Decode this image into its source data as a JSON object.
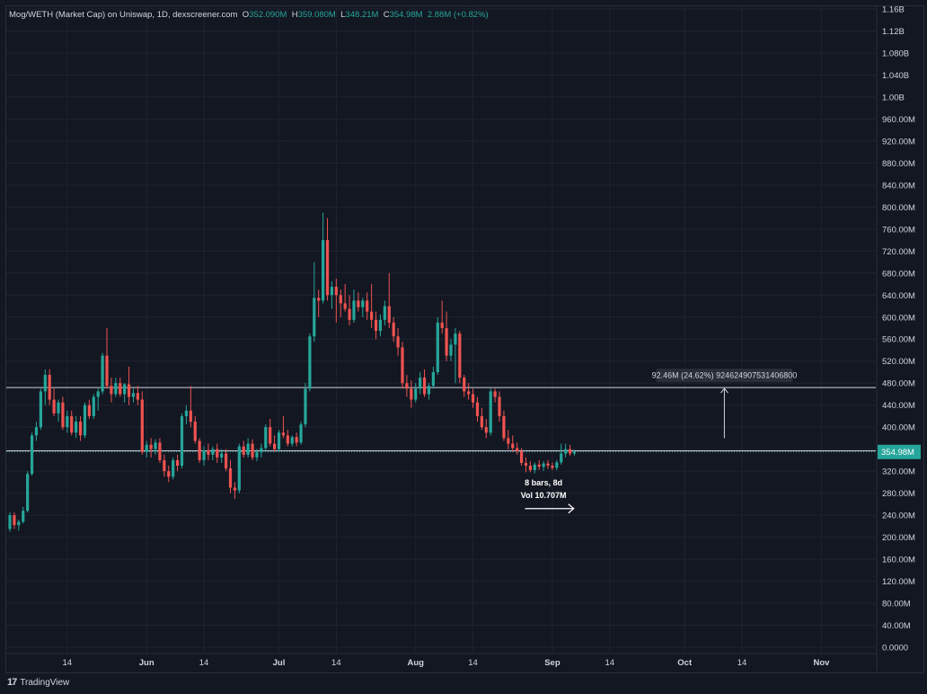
{
  "header": {
    "pair": "Mog/WETH (Market Cap) on Uniswap, 1D, dexscreener.com",
    "o_label": "O",
    "o_value": "352.090M",
    "h_label": "H",
    "h_value": "359.080M",
    "l_label": "L",
    "l_value": "348.21M",
    "c_label": "C",
    "c_value": "354.98M",
    "change": "2.88M (+0.82%)"
  },
  "branding": {
    "logo_mark": "17",
    "name": "TradingView"
  },
  "colors": {
    "up": "#26a69a",
    "down": "#ef5350",
    "background": "#131722",
    "grid": "#1f2331",
    "text": "#d1d4dc"
  },
  "chart_data": {
    "type": "candlestick",
    "y_unit": "market cap (USD)",
    "ylim": [
      0,
      1160000000
    ],
    "y_ticks": [
      "1.16B",
      "1.12B",
      "1.080B",
      "1.040B",
      "1.00B",
      "960.00M",
      "920.00M",
      "880.00M",
      "840.00M",
      "800.00M",
      "760.00M",
      "720.00M",
      "680.00M",
      "640.00M",
      "600.00M",
      "560.00M",
      "520.00M",
      "480.00M",
      "440.00M",
      "400.00M",
      "360.00M",
      "320.00M",
      "280.00M",
      "240.00M",
      "200.00M",
      "160.00M",
      "120.00M",
      "80.00M",
      "40.00M",
      "0.0000"
    ],
    "y_tick_values": [
      1160,
      1120,
      1080,
      1040,
      1000,
      960,
      920,
      880,
      840,
      800,
      760,
      720,
      680,
      640,
      600,
      560,
      520,
      480,
      440,
      400,
      360,
      320,
      280,
      240,
      200,
      160,
      120,
      80,
      40,
      0
    ],
    "x_ticks": [
      {
        "label": "14",
        "day": 14,
        "bold": false
      },
      {
        "label": "Jun",
        "day": 32,
        "bold": true
      },
      {
        "label": "14",
        "day": 45,
        "bold": false
      },
      {
        "label": "Jul",
        "day": 62,
        "bold": true
      },
      {
        "label": "14",
        "day": 75,
        "bold": false
      },
      {
        "label": "Aug",
        "day": 93,
        "bold": true
      },
      {
        "label": "14",
        "day": 106,
        "bold": false
      },
      {
        "label": "Sep",
        "day": 124,
        "bold": true
      },
      {
        "label": "14",
        "day": 137,
        "bold": false
      },
      {
        "label": "Oct",
        "day": 154,
        "bold": true
      },
      {
        "label": "14",
        "day": 167,
        "bold": false
      },
      {
        "label": "Nov",
        "day": 185,
        "bold": true
      }
    ],
    "x_domain": [
      1,
      194
    ],
    "last_price_label": "354.98M",
    "last_price": 354.98,
    "horizontal_lines": [
      472,
      357
    ],
    "measure": {
      "label": "92.46M (24.62%) 924624907531406800",
      "from_price": 380,
      "to_price": 472,
      "day": 163
    },
    "range_note": {
      "line1": "8 bars, 8d",
      "line2": "Vol 10.707M",
      "from_day": 118,
      "to_day": 126,
      "price": 252
    },
    "candles": [
      {
        "d": 1,
        "o": 215,
        "h": 245,
        "l": 210,
        "c": 240
      },
      {
        "d": 2,
        "o": 240,
        "h": 245,
        "l": 215,
        "c": 222
      },
      {
        "d": 3,
        "o": 222,
        "h": 232,
        "l": 212,
        "c": 228
      },
      {
        "d": 4,
        "o": 228,
        "h": 255,
        "l": 225,
        "c": 248
      },
      {
        "d": 5,
        "o": 248,
        "h": 320,
        "l": 245,
        "c": 315
      },
      {
        "d": 6,
        "o": 315,
        "h": 390,
        "l": 312,
        "c": 385
      },
      {
        "d": 7,
        "o": 385,
        "h": 410,
        "l": 375,
        "c": 400
      },
      {
        "d": 8,
        "o": 400,
        "h": 470,
        "l": 395,
        "c": 465
      },
      {
        "d": 9,
        "o": 465,
        "h": 505,
        "l": 440,
        "c": 495
      },
      {
        "d": 10,
        "o": 495,
        "h": 505,
        "l": 440,
        "c": 450
      },
      {
        "d": 11,
        "o": 450,
        "h": 470,
        "l": 420,
        "c": 425
      },
      {
        "d": 12,
        "o": 425,
        "h": 450,
        "l": 410,
        "c": 445
      },
      {
        "d": 13,
        "o": 445,
        "h": 455,
        "l": 395,
        "c": 400
      },
      {
        "d": 14,
        "o": 400,
        "h": 430,
        "l": 390,
        "c": 420
      },
      {
        "d": 15,
        "o": 420,
        "h": 430,
        "l": 385,
        "c": 390
      },
      {
        "d": 16,
        "o": 390,
        "h": 420,
        "l": 380,
        "c": 410
      },
      {
        "d": 17,
        "o": 410,
        "h": 420,
        "l": 375,
        "c": 385
      },
      {
        "d": 18,
        "o": 385,
        "h": 445,
        "l": 380,
        "c": 440
      },
      {
        "d": 19,
        "o": 440,
        "h": 450,
        "l": 415,
        "c": 420
      },
      {
        "d": 20,
        "o": 420,
        "h": 460,
        "l": 415,
        "c": 455
      },
      {
        "d": 21,
        "o": 455,
        "h": 470,
        "l": 430,
        "c": 465
      },
      {
        "d": 22,
        "o": 465,
        "h": 535,
        "l": 460,
        "c": 530
      },
      {
        "d": 23,
        "o": 530,
        "h": 580,
        "l": 470,
        "c": 475
      },
      {
        "d": 24,
        "o": 475,
        "h": 490,
        "l": 445,
        "c": 460
      },
      {
        "d": 25,
        "o": 460,
        "h": 490,
        "l": 455,
        "c": 480
      },
      {
        "d": 26,
        "o": 480,
        "h": 490,
        "l": 455,
        "c": 460
      },
      {
        "d": 27,
        "o": 460,
        "h": 480,
        "l": 445,
        "c": 478
      },
      {
        "d": 28,
        "o": 478,
        "h": 510,
        "l": 440,
        "c": 455
      },
      {
        "d": 29,
        "o": 455,
        "h": 470,
        "l": 445,
        "c": 462
      },
      {
        "d": 30,
        "o": 462,
        "h": 475,
        "l": 440,
        "c": 450
      },
      {
        "d": 31,
        "o": 450,
        "h": 465,
        "l": 350,
        "c": 355
      },
      {
        "d": 32,
        "o": 355,
        "h": 375,
        "l": 345,
        "c": 368
      },
      {
        "d": 33,
        "o": 368,
        "h": 380,
        "l": 345,
        "c": 360
      },
      {
        "d": 34,
        "o": 360,
        "h": 378,
        "l": 350,
        "c": 372
      },
      {
        "d": 35,
        "o": 372,
        "h": 380,
        "l": 335,
        "c": 340
      },
      {
        "d": 36,
        "o": 340,
        "h": 350,
        "l": 310,
        "c": 320
      },
      {
        "d": 37,
        "o": 320,
        "h": 330,
        "l": 300,
        "c": 310
      },
      {
        "d": 38,
        "o": 310,
        "h": 345,
        "l": 305,
        "c": 340
      },
      {
        "d": 39,
        "o": 340,
        "h": 350,
        "l": 320,
        "c": 330
      },
      {
        "d": 40,
        "o": 330,
        "h": 425,
        "l": 325,
        "c": 420
      },
      {
        "d": 41,
        "o": 420,
        "h": 440,
        "l": 405,
        "c": 430
      },
      {
        "d": 42,
        "o": 430,
        "h": 475,
        "l": 400,
        "c": 410
      },
      {
        "d": 43,
        "o": 410,
        "h": 420,
        "l": 370,
        "c": 375
      },
      {
        "d": 44,
        "o": 375,
        "h": 380,
        "l": 335,
        "c": 340
      },
      {
        "d": 45,
        "o": 340,
        "h": 365,
        "l": 330,
        "c": 358
      },
      {
        "d": 46,
        "o": 358,
        "h": 370,
        "l": 340,
        "c": 350
      },
      {
        "d": 47,
        "o": 350,
        "h": 365,
        "l": 340,
        "c": 360
      },
      {
        "d": 48,
        "o": 360,
        "h": 370,
        "l": 335,
        "c": 345
      },
      {
        "d": 49,
        "o": 345,
        "h": 360,
        "l": 335,
        "c": 352
      },
      {
        "d": 50,
        "o": 352,
        "h": 360,
        "l": 320,
        "c": 325
      },
      {
        "d": 51,
        "o": 325,
        "h": 340,
        "l": 280,
        "c": 290
      },
      {
        "d": 52,
        "o": 290,
        "h": 300,
        "l": 270,
        "c": 285
      },
      {
        "d": 53,
        "o": 285,
        "h": 370,
        "l": 280,
        "c": 365
      },
      {
        "d": 54,
        "o": 365,
        "h": 375,
        "l": 345,
        "c": 350
      },
      {
        "d": 55,
        "o": 350,
        "h": 380,
        "l": 345,
        "c": 370
      },
      {
        "d": 56,
        "o": 370,
        "h": 378,
        "l": 340,
        "c": 345
      },
      {
        "d": 57,
        "o": 345,
        "h": 360,
        "l": 338,
        "c": 355
      },
      {
        "d": 58,
        "o": 355,
        "h": 370,
        "l": 345,
        "c": 362
      },
      {
        "d": 59,
        "o": 362,
        "h": 405,
        "l": 355,
        "c": 400
      },
      {
        "d": 60,
        "o": 400,
        "h": 415,
        "l": 365,
        "c": 370
      },
      {
        "d": 61,
        "o": 370,
        "h": 385,
        "l": 355,
        "c": 360
      },
      {
        "d": 62,
        "o": 360,
        "h": 395,
        "l": 355,
        "c": 390
      },
      {
        "d": 63,
        "o": 390,
        "h": 420,
        "l": 380,
        "c": 385
      },
      {
        "d": 64,
        "o": 385,
        "h": 395,
        "l": 365,
        "c": 370
      },
      {
        "d": 65,
        "o": 370,
        "h": 385,
        "l": 365,
        "c": 382
      },
      {
        "d": 66,
        "o": 382,
        "h": 390,
        "l": 365,
        "c": 372
      },
      {
        "d": 67,
        "o": 372,
        "h": 410,
        "l": 368,
        "c": 405
      },
      {
        "d": 68,
        "o": 405,
        "h": 480,
        "l": 400,
        "c": 470
      },
      {
        "d": 69,
        "o": 470,
        "h": 570,
        "l": 465,
        "c": 565
      },
      {
        "d": 70,
        "o": 565,
        "h": 700,
        "l": 555,
        "c": 635
      },
      {
        "d": 71,
        "o": 635,
        "h": 650,
        "l": 600,
        "c": 630
      },
      {
        "d": 72,
        "o": 630,
        "h": 790,
        "l": 625,
        "c": 740
      },
      {
        "d": 73,
        "o": 740,
        "h": 780,
        "l": 630,
        "c": 640
      },
      {
        "d": 74,
        "o": 640,
        "h": 665,
        "l": 615,
        "c": 655
      },
      {
        "d": 75,
        "o": 655,
        "h": 670,
        "l": 590,
        "c": 640
      },
      {
        "d": 76,
        "o": 640,
        "h": 650,
        "l": 600,
        "c": 625
      },
      {
        "d": 77,
        "o": 625,
        "h": 660,
        "l": 610,
        "c": 615
      },
      {
        "d": 78,
        "o": 615,
        "h": 640,
        "l": 585,
        "c": 595
      },
      {
        "d": 79,
        "o": 595,
        "h": 650,
        "l": 590,
        "c": 630
      },
      {
        "d": 80,
        "o": 630,
        "h": 645,
        "l": 610,
        "c": 618
      },
      {
        "d": 81,
        "o": 618,
        "h": 635,
        "l": 600,
        "c": 630
      },
      {
        "d": 82,
        "o": 630,
        "h": 645,
        "l": 595,
        "c": 610
      },
      {
        "d": 83,
        "o": 610,
        "h": 660,
        "l": 580,
        "c": 595
      },
      {
        "d": 84,
        "o": 595,
        "h": 610,
        "l": 560,
        "c": 575
      },
      {
        "d": 85,
        "o": 575,
        "h": 605,
        "l": 565,
        "c": 595
      },
      {
        "d": 86,
        "o": 595,
        "h": 630,
        "l": 585,
        "c": 620
      },
      {
        "d": 87,
        "o": 620,
        "h": 680,
        "l": 580,
        "c": 590
      },
      {
        "d": 88,
        "o": 590,
        "h": 600,
        "l": 555,
        "c": 565
      },
      {
        "d": 89,
        "o": 565,
        "h": 580,
        "l": 530,
        "c": 545
      },
      {
        "d": 90,
        "o": 545,
        "h": 555,
        "l": 470,
        "c": 480
      },
      {
        "d": 91,
        "o": 480,
        "h": 495,
        "l": 455,
        "c": 470
      },
      {
        "d": 92,
        "o": 470,
        "h": 485,
        "l": 435,
        "c": 450
      },
      {
        "d": 93,
        "o": 450,
        "h": 480,
        "l": 445,
        "c": 470
      },
      {
        "d": 94,
        "o": 470,
        "h": 500,
        "l": 460,
        "c": 490
      },
      {
        "d": 95,
        "o": 490,
        "h": 505,
        "l": 455,
        "c": 460
      },
      {
        "d": 96,
        "o": 460,
        "h": 480,
        "l": 450,
        "c": 475
      },
      {
        "d": 97,
        "o": 475,
        "h": 510,
        "l": 470,
        "c": 500
      },
      {
        "d": 98,
        "o": 500,
        "h": 600,
        "l": 495,
        "c": 590
      },
      {
        "d": 99,
        "o": 590,
        "h": 630,
        "l": 570,
        "c": 580
      },
      {
        "d": 100,
        "o": 580,
        "h": 610,
        "l": 520,
        "c": 530
      },
      {
        "d": 101,
        "o": 530,
        "h": 560,
        "l": 520,
        "c": 550
      },
      {
        "d": 102,
        "o": 550,
        "h": 580,
        "l": 480,
        "c": 570
      },
      {
        "d": 103,
        "o": 570,
        "h": 575,
        "l": 480,
        "c": 490
      },
      {
        "d": 104,
        "o": 490,
        "h": 495,
        "l": 455,
        "c": 465
      },
      {
        "d": 105,
        "o": 465,
        "h": 480,
        "l": 450,
        "c": 460
      },
      {
        "d": 106,
        "o": 460,
        "h": 470,
        "l": 435,
        "c": 445
      },
      {
        "d": 107,
        "o": 445,
        "h": 455,
        "l": 410,
        "c": 420
      },
      {
        "d": 108,
        "o": 420,
        "h": 435,
        "l": 395,
        "c": 400
      },
      {
        "d": 109,
        "o": 400,
        "h": 415,
        "l": 380,
        "c": 390
      },
      {
        "d": 110,
        "o": 390,
        "h": 470,
        "l": 385,
        "c": 465
      },
      {
        "d": 111,
        "o": 465,
        "h": 470,
        "l": 445,
        "c": 455
      },
      {
        "d": 112,
        "o": 455,
        "h": 465,
        "l": 410,
        "c": 420
      },
      {
        "d": 113,
        "o": 420,
        "h": 430,
        "l": 375,
        "c": 380
      },
      {
        "d": 114,
        "o": 380,
        "h": 395,
        "l": 360,
        "c": 370
      },
      {
        "d": 115,
        "o": 370,
        "h": 385,
        "l": 355,
        "c": 362
      },
      {
        "d": 116,
        "o": 362,
        "h": 372,
        "l": 350,
        "c": 356
      },
      {
        "d": 117,
        "o": 356,
        "h": 362,
        "l": 330,
        "c": 335
      },
      {
        "d": 118,
        "o": 335,
        "h": 345,
        "l": 318,
        "c": 330
      },
      {
        "d": 119,
        "o": 330,
        "h": 338,
        "l": 318,
        "c": 322
      },
      {
        "d": 120,
        "o": 322,
        "h": 336,
        "l": 316,
        "c": 332
      },
      {
        "d": 121,
        "o": 332,
        "h": 340,
        "l": 322,
        "c": 328
      },
      {
        "d": 122,
        "o": 328,
        "h": 338,
        "l": 320,
        "c": 334
      },
      {
        "d": 123,
        "o": 334,
        "h": 340,
        "l": 324,
        "c": 330
      },
      {
        "d": 124,
        "o": 330,
        "h": 336,
        "l": 322,
        "c": 326
      },
      {
        "d": 125,
        "o": 326,
        "h": 340,
        "l": 322,
        "c": 336
      },
      {
        "d": 126,
        "o": 336,
        "h": 370,
        "l": 332,
        "c": 352
      },
      {
        "d": 127,
        "o": 352,
        "h": 370,
        "l": 345,
        "c": 360
      },
      {
        "d": 128,
        "o": 360,
        "h": 368,
        "l": 348,
        "c": 352
      },
      {
        "d": 129,
        "o": 352.09,
        "h": 359.08,
        "l": 348.21,
        "c": 354.98
      }
    ]
  }
}
